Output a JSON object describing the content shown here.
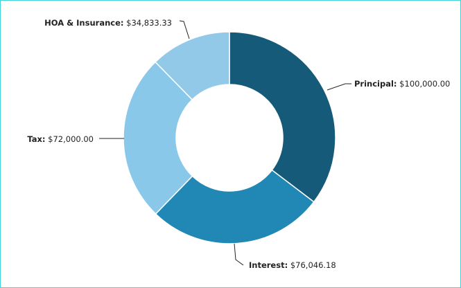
{
  "chart_data": {
    "type": "pie",
    "donut": true,
    "slices": [
      {
        "name": "Principal",
        "value": 100000.0,
        "display": "$100,000.00",
        "color": "#165a7a"
      },
      {
        "name": "Interest",
        "value": 76046.18,
        "display": "$76,046.18",
        "color": "#2187b5"
      },
      {
        "name": "Tax",
        "value": 72000.0,
        "display": "$72,000.00",
        "color": "#8ac8ea"
      },
      {
        "name": "HOA & Insurance",
        "value": 34833.33,
        "display": "$34,833.33",
        "color": "#92c9e8"
      }
    ],
    "title": "",
    "legend": "none"
  }
}
